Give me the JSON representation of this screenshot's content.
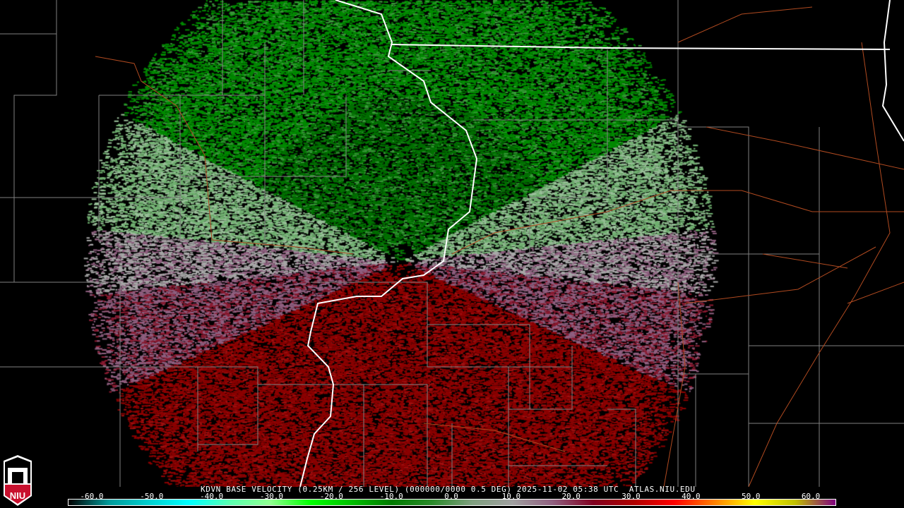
{
  "product": {
    "title": "KDVN BASE VELOCITY (0.25KM / 256 LEVEL) (000000/0000 0.5 DEG) 2025-11-02 05:38 UTC  ATLAS.NIU.EDU",
    "station": "KDVN",
    "timestamp": "2025-11-02 05:38 UTC",
    "source": "ATLAS.NIU.EDU"
  },
  "logo": {
    "text": "NIU",
    "colors": {
      "red": "#c8102e",
      "white": "#ffffff"
    }
  },
  "colorbar": {
    "ticks": [
      "-60.0",
      "-50.0",
      "-40.0",
      "-30.0",
      "-20.0",
      "-10.0",
      "0.0",
      "10.0",
      "20.0",
      "30.0",
      "40.0",
      "50.0",
      "60.0"
    ],
    "range": [
      -64,
      64
    ],
    "colors": [
      "#000000",
      "#009a9a",
      "#00d0d0",
      "#00ffff",
      "#5affb0",
      "#90ff90",
      "#00ff00",
      "#00c000",
      "#007a00",
      "#2a8a2a",
      "#80a080",
      "#a0a0a0",
      "#906080",
      "#800020",
      "#b00000",
      "#ff0000",
      "#ff8000",
      "#ffff00",
      "#c0c000",
      "#800080"
    ]
  },
  "map": {
    "county_line_color": "#808080",
    "state_line_color": "#ffffff",
    "road_color": "#b04a20"
  }
}
